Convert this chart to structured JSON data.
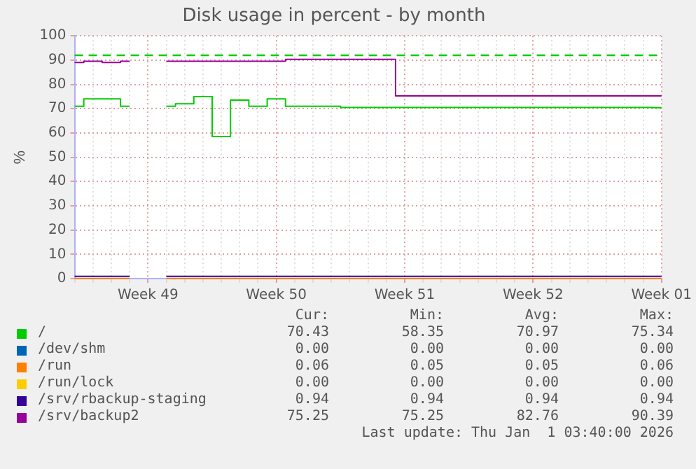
{
  "chart_data": {
    "type": "step",
    "title": "Disk usage in percent - by month",
    "ylabel": "%",
    "categories": [
      null,
      null,
      null,
      null,
      "Week 49",
      null,
      null,
      null,
      null,
      null,
      null,
      "Week 50",
      null,
      null,
      null,
      null,
      null,
      null,
      "Week 51",
      null,
      null,
      null,
      null,
      null,
      null,
      "Week 52",
      null,
      null,
      null,
      null,
      null,
      null,
      "Week 01"
    ],
    "series": [
      {
        "name": "/",
        "color": "#00cc00",
        "values": [
          71,
          74,
          74,
          71,
          null,
          71,
          72,
          75,
          58.5,
          73.5,
          71,
          74,
          71,
          71,
          71,
          70.5,
          70.5,
          70.5,
          70.5,
          70.5,
          70.5,
          70.5,
          70.5,
          70.5,
          70.5,
          70.5,
          70.5,
          70.5,
          70.5,
          70.5,
          70.5,
          70.5,
          70.4
        ]
      },
      {
        "name": "/dev/shm",
        "color": "#0066b3",
        "values": [
          null,
          null,
          null,
          null,
          null,
          null,
          null,
          null,
          null,
          null,
          null,
          null,
          null,
          null,
          null,
          null,
          null,
          null,
          null,
          null,
          null,
          null,
          null,
          null,
          null,
          null,
          null,
          null,
          null,
          null,
          null,
          null,
          null
        ]
      },
      {
        "name": "/run",
        "color": "#ff8000",
        "values": [
          0.06,
          0.06,
          0.06,
          0.06,
          null,
          0.06,
          0.06,
          0.06,
          0.06,
          0.06,
          0.06,
          0.06,
          0.06,
          0.06,
          0.06,
          0.06,
          0.06,
          0.06,
          0.06,
          0.06,
          0.06,
          0.06,
          0.06,
          0.06,
          0.06,
          0.06,
          0.06,
          0.06,
          0.06,
          0.06,
          0.06,
          0.06,
          0.06
        ]
      },
      {
        "name": "/run/lock",
        "color": "#ffcc00",
        "values": [
          null,
          null,
          null,
          null,
          null,
          null,
          null,
          null,
          null,
          null,
          null,
          null,
          null,
          null,
          null,
          null,
          null,
          null,
          null,
          null,
          null,
          null,
          null,
          null,
          null,
          null,
          null,
          null,
          null,
          null,
          null,
          null,
          null
        ]
      },
      {
        "name": "/srv/rbackup-staging",
        "color": "#330099",
        "values": [
          0.94,
          0.94,
          0.94,
          0.94,
          null,
          0.94,
          0.94,
          0.94,
          0.94,
          0.94,
          0.94,
          0.94,
          0.94,
          0.94,
          0.94,
          0.94,
          0.94,
          0.94,
          0.94,
          0.94,
          0.94,
          0.94,
          0.94,
          0.94,
          0.94,
          0.94,
          0.94,
          0.94,
          0.94,
          0.94,
          0.94,
          0.94,
          0.94
        ]
      },
      {
        "name": "/srv/backup2",
        "color": "#990099",
        "values": [
          89,
          89.5,
          89,
          89.5,
          null,
          89.5,
          89.5,
          89.5,
          89.5,
          89.5,
          89.5,
          89.5,
          90.3,
          90.3,
          90.3,
          90.3,
          90.3,
          90.3,
          75.25,
          75.25,
          75.25,
          75.25,
          75.25,
          75.25,
          75.25,
          75.25,
          75.25,
          75.25,
          75.25,
          75.25,
          75.25,
          75.25,
          75.25
        ]
      }
    ],
    "ylim": [
      0,
      100
    ],
    "yticks": [
      0,
      10,
      20,
      30,
      40,
      50,
      60,
      70,
      80,
      90,
      100
    ],
    "ref_lines": [
      {
        "axis": "y",
        "value": 92,
        "color": "#00cc00",
        "line_style": "dashed"
      }
    ],
    "grid": true,
    "legend": "bottom",
    "marker": "none",
    "line_style": "solid",
    "annotations": [
      "Cur:",
      "Min:",
      "Avg:",
      "Max:",
      "70.43",
      "58.35",
      "70.97",
      "75.34",
      "0.00",
      "0.00",
      "0.00",
      "0.00",
      "0.06",
      "0.05",
      "0.05",
      "0.06",
      "0.00",
      "0.00",
      "0.00",
      "0.00",
      "0.94",
      "0.94",
      "0.94",
      "0.94",
      "75.25",
      "75.25",
      "82.76",
      "90.39",
      "Last update: Thu Jan  1 03:40:00 2026"
    ]
  }
}
